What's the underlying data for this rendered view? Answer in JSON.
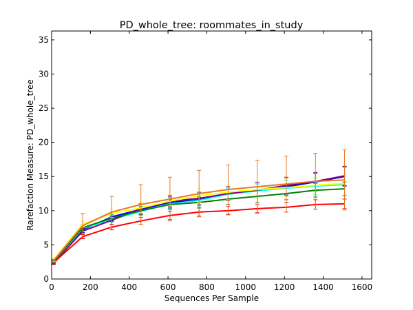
{
  "chart_data": {
    "type": "line",
    "title": "PD_whole_tree: roommates_in_study",
    "xlabel": "Sequences Per Sample",
    "ylabel": "Rarefaction Measure: PD_whole_tree",
    "xlim": [
      0,
      1650
    ],
    "ylim": [
      0,
      36.3
    ],
    "xticks": [
      0,
      200,
      400,
      600,
      800,
      1000,
      1200,
      1400,
      1600
    ],
    "yticks": [
      0,
      5,
      10,
      15,
      20,
      25,
      30,
      35
    ],
    "grid": false,
    "legend": "none",
    "x": [
      10,
      160,
      310,
      460,
      610,
      760,
      910,
      1060,
      1210,
      1360,
      1510
    ],
    "series": [
      {
        "color": "#0000ff",
        "values": [
          2.5,
          7.2,
          9.1,
          10.2,
          11.2,
          11.6,
          12.5,
          13.0,
          13.5,
          14.2,
          15.0
        ],
        "errors": [
          0.2,
          0.4,
          0.6,
          0.7,
          0.8,
          0.9,
          1.0,
          1.1,
          1.2,
          1.3,
          1.4
        ]
      },
      {
        "color": "#00ffff",
        "values": [
          2.4,
          7.4,
          8.7,
          9.9,
          11.0,
          11.5,
          12.4,
          12.9,
          13.3,
          13.6,
          13.8
        ],
        "errors": [
          0.2,
          0.4,
          0.5,
          0.6,
          0.7,
          0.8,
          0.9,
          1.0,
          1.1,
          1.2,
          1.3
        ]
      },
      {
        "color": "#800080",
        "values": [
          2.3,
          7.0,
          8.6,
          10.3,
          11.4,
          11.8,
          12.5,
          13.0,
          13.7,
          14.3,
          15.1
        ],
        "errors": [
          0.2,
          0.4,
          0.6,
          0.7,
          0.8,
          0.9,
          1.0,
          1.1,
          1.2,
          1.3,
          1.4
        ]
      },
      {
        "color": "#ff0000",
        "values": [
          2.4,
          6.2,
          7.6,
          8.5,
          9.3,
          9.8,
          10.0,
          10.3,
          10.5,
          10.9,
          11.0
        ],
        "errors": [
          0.2,
          0.3,
          0.4,
          0.5,
          0.6,
          0.6,
          0.6,
          0.6,
          0.7,
          0.7,
          0.7
        ]
      },
      {
        "color": "#008000",
        "values": [
          2.6,
          7.5,
          8.9,
          10.0,
          10.9,
          11.2,
          11.7,
          12.1,
          12.5,
          13.0,
          13.2
        ],
        "errors": [
          0.2,
          0.4,
          0.5,
          0.6,
          0.7,
          0.8,
          0.8,
          0.9,
          0.9,
          1.0,
          1.0
        ]
      },
      {
        "color": "#ffff00",
        "values": [
          2.8,
          8.0,
          9.6,
          10.4,
          11.4,
          12.2,
          12.7,
          13.1,
          13.4,
          13.7,
          14.0
        ],
        "errors": [
          0.2,
          0.4,
          0.6,
          0.8,
          0.9,
          1.0,
          1.1,
          1.2,
          1.3,
          1.4,
          1.5
        ]
      },
      {
        "color": "#e87722",
        "values": [
          2.7,
          7.8,
          9.8,
          10.9,
          11.7,
          12.5,
          13.1,
          13.5,
          13.9,
          14.3,
          14.5
        ],
        "errors": [
          0.2,
          1.8,
          2.3,
          2.9,
          3.2,
          3.4,
          3.6,
          3.9,
          4.1,
          4.1,
          4.4
        ]
      }
    ]
  }
}
